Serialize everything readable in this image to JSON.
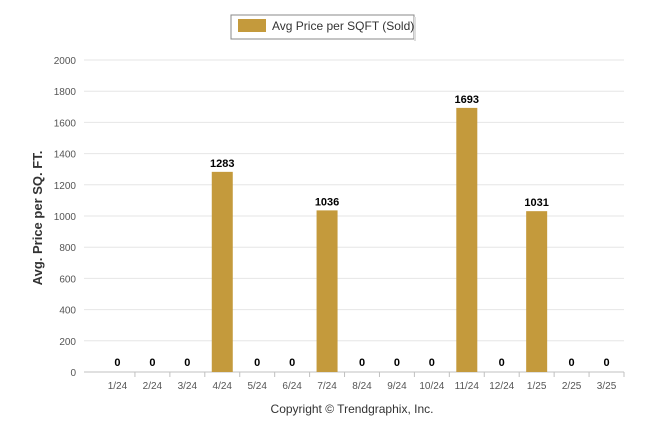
{
  "chart_data": {
    "type": "bar",
    "categories": [
      "1/24",
      "2/24",
      "3/24",
      "4/24",
      "5/24",
      "6/24",
      "7/24",
      "8/24",
      "9/24",
      "10/24",
      "11/24",
      "12/24",
      "1/25",
      "2/25",
      "3/25"
    ],
    "series": [
      {
        "name": "Avg Price per SQFT (Sold)",
        "values": [
          0,
          0,
          0,
          1283,
          0,
          0,
          1036,
          0,
          0,
          0,
          1693,
          0,
          1031,
          0,
          0
        ],
        "color": "#c49a3c"
      }
    ],
    "ylabel": "Avg. Price per SQ. FT.",
    "xlabel": "",
    "ylim": [
      0,
      2000
    ],
    "yticks": [
      0,
      200,
      400,
      600,
      800,
      1000,
      1200,
      1400,
      1600,
      1800,
      2000
    ],
    "grid": true,
    "legend": "top-center",
    "data_labels": true
  },
  "footer": {
    "copyright": "Copyright © Trendgraphix, Inc."
  }
}
